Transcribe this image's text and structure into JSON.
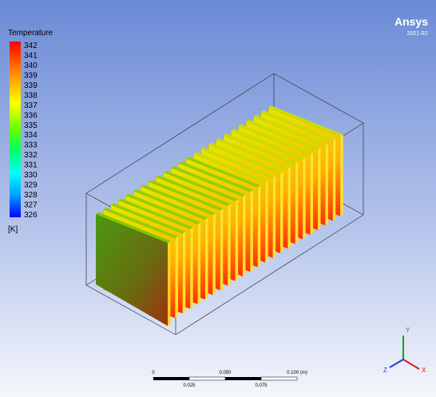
{
  "legend": {
    "title": "Temperature",
    "labels": [
      "342",
      "341",
      "340",
      "339",
      "339",
      "338",
      "337",
      "336",
      "335",
      "334",
      "333",
      "332",
      "331",
      "330",
      "329",
      "328",
      "327",
      "326"
    ],
    "unit": "[K]"
  },
  "branding": {
    "name": "Ansys",
    "version": "2021 R2"
  },
  "scale_bar": {
    "top_labels": [
      "0",
      "0.050",
      "0.100 (m)"
    ],
    "bottom_labels": [
      "0.025",
      "0.075"
    ]
  },
  "triad": {
    "y": "Y",
    "x": "X",
    "z": "Z"
  }
}
